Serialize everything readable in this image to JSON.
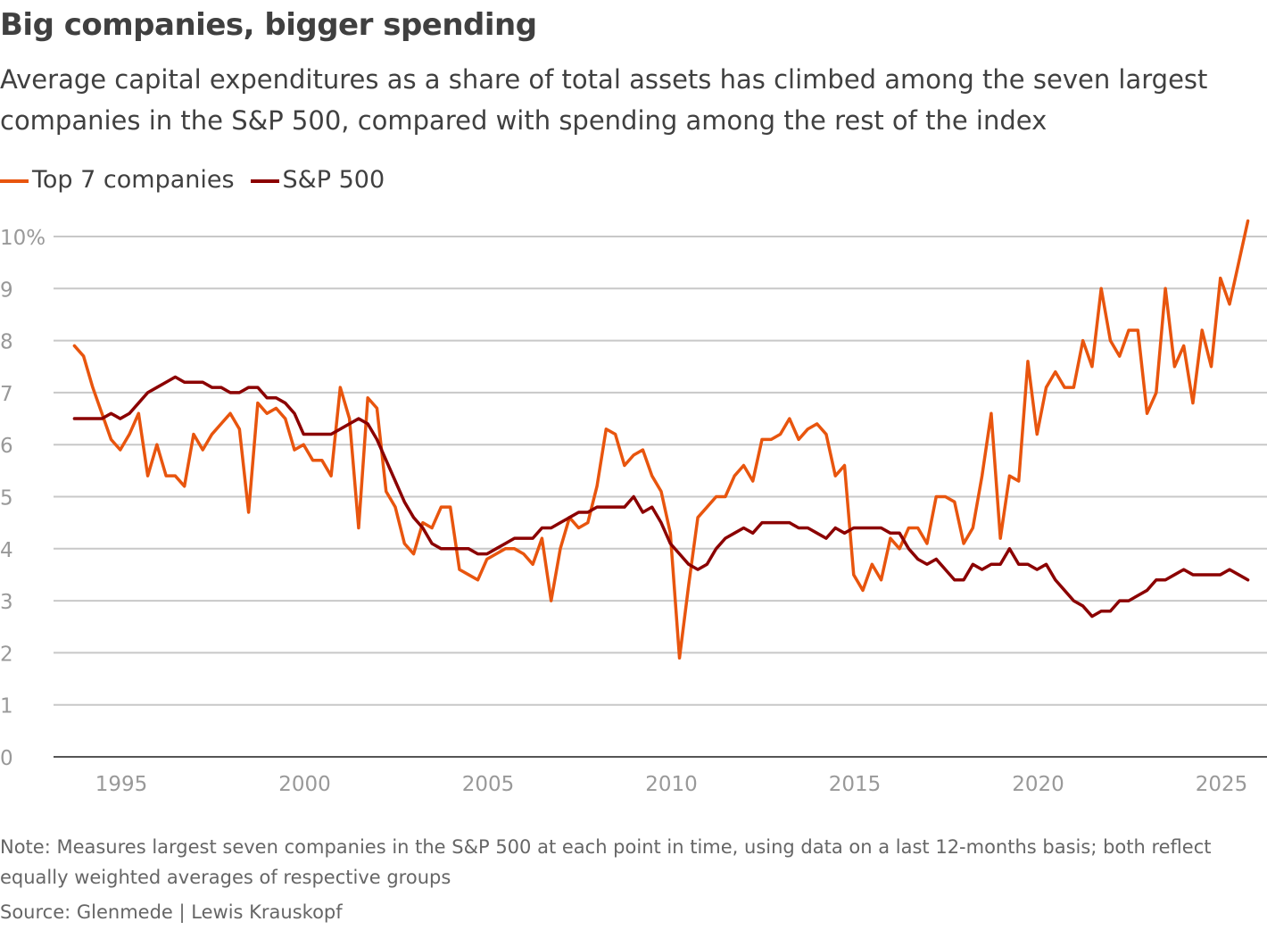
{
  "title": "Big companies, bigger spending",
  "subtitle": "Average capital expenditures as a share of total assets has climbed among the seven largest companies in the S&P 500, compared with spending among the rest of the index",
  "note": "Note: Measures largest seven companies in the S&P 500 at each point in time, using data on a last 12-months basis; both reflect equally weighted averages of respective groups",
  "source": "Source: Glenmede | Lewis Krauskopf",
  "chart_data": {
    "type": "line",
    "title": "Big companies, bigger spending",
    "xlabel": "",
    "ylabel": "",
    "frequency": "quarterly",
    "x_start": "1993-Q4",
    "x_end": "2025-Q4",
    "xlim": [
      1993.5,
      2026
    ],
    "ylim": [
      0,
      10
    ],
    "x_ticks": [
      "1995",
      "2000",
      "2005",
      "2010",
      "2015",
      "2020",
      "2025"
    ],
    "y_ticks": [
      "0",
      "1",
      "2",
      "3",
      "4",
      "5",
      "6",
      "7",
      "8",
      "9",
      "10%"
    ],
    "grid": "horizontal",
    "legend_position": "top-left",
    "series": [
      {
        "name": "Top 7 companies",
        "color": "#e8550e",
        "values": [
          7.9,
          7.7,
          7.1,
          6.6,
          6.1,
          5.9,
          6.2,
          6.6,
          5.4,
          6.0,
          5.4,
          5.4,
          5.2,
          6.2,
          5.9,
          6.2,
          6.4,
          6.6,
          6.3,
          4.7,
          6.8,
          6.6,
          6.7,
          6.5,
          5.9,
          6.0,
          5.7,
          5.7,
          5.4,
          7.1,
          6.5,
          4.4,
          6.9,
          6.7,
          5.1,
          4.8,
          4.1,
          3.9,
          4.5,
          4.4,
          4.8,
          4.8,
          3.6,
          3.5,
          3.4,
          3.8,
          3.9,
          4.0,
          4.0,
          3.9,
          3.7,
          4.2,
          3.0,
          4.0,
          4.6,
          4.4,
          4.5,
          5.2,
          6.3,
          6.2,
          5.6,
          5.8,
          5.9,
          5.4,
          5.1,
          4.3,
          1.9,
          3.3,
          4.6,
          4.8,
          5.0,
          5.0,
          5.4,
          5.6,
          5.3,
          6.1,
          6.1,
          6.2,
          6.5,
          6.1,
          6.3,
          6.4,
          6.2,
          5.4,
          5.6,
          3.5,
          3.2,
          3.7,
          3.4,
          4.2,
          4.0,
          4.4,
          4.4,
          4.1,
          5.0,
          5.0,
          4.9,
          4.1,
          4.4,
          5.4,
          6.6,
          4.2,
          5.4,
          5.3,
          7.6,
          6.2,
          7.1,
          7.4,
          7.1,
          7.1,
          8.0,
          7.5,
          9.0,
          8.0,
          7.7,
          8.2,
          8.2,
          6.6,
          7.0,
          9.0,
          7.5,
          7.9,
          6.8,
          8.2,
          7.5,
          9.2,
          8.7,
          9.5,
          10.3
        ]
      },
      {
        "name": "S&P 500",
        "color": "#8b0000",
        "values": [
          6.5,
          6.5,
          6.5,
          6.5,
          6.6,
          6.5,
          6.6,
          6.8,
          7.0,
          7.1,
          7.2,
          7.3,
          7.2,
          7.2,
          7.2,
          7.1,
          7.1,
          7.0,
          7.0,
          7.1,
          7.1,
          6.9,
          6.9,
          6.8,
          6.6,
          6.2,
          6.2,
          6.2,
          6.2,
          6.3,
          6.4,
          6.5,
          6.4,
          6.1,
          5.7,
          5.3,
          4.9,
          4.6,
          4.4,
          4.1,
          4.0,
          4.0,
          4.0,
          4.0,
          3.9,
          3.9,
          4.0,
          4.1,
          4.2,
          4.2,
          4.2,
          4.4,
          4.4,
          4.5,
          4.6,
          4.7,
          4.7,
          4.8,
          4.8,
          4.8,
          4.8,
          5.0,
          4.7,
          4.8,
          4.5,
          4.1,
          3.9,
          3.7,
          3.6,
          3.7,
          4.0,
          4.2,
          4.3,
          4.4,
          4.3,
          4.5,
          4.5,
          4.5,
          4.5,
          4.4,
          4.4,
          4.3,
          4.2,
          4.4,
          4.3,
          4.4,
          4.4,
          4.4,
          4.4,
          4.3,
          4.3,
          4.0,
          3.8,
          3.7,
          3.8,
          3.6,
          3.4,
          3.4,
          3.7,
          3.6,
          3.7,
          3.7,
          4.0,
          3.7,
          3.7,
          3.6,
          3.7,
          3.4,
          3.2,
          3.0,
          2.9,
          2.7,
          2.8,
          2.8,
          3.0,
          3.0,
          3.1,
          3.2,
          3.4,
          3.4,
          3.5,
          3.6,
          3.5,
          3.5,
          3.5,
          3.5,
          3.6,
          3.5,
          3.4
        ]
      }
    ]
  }
}
